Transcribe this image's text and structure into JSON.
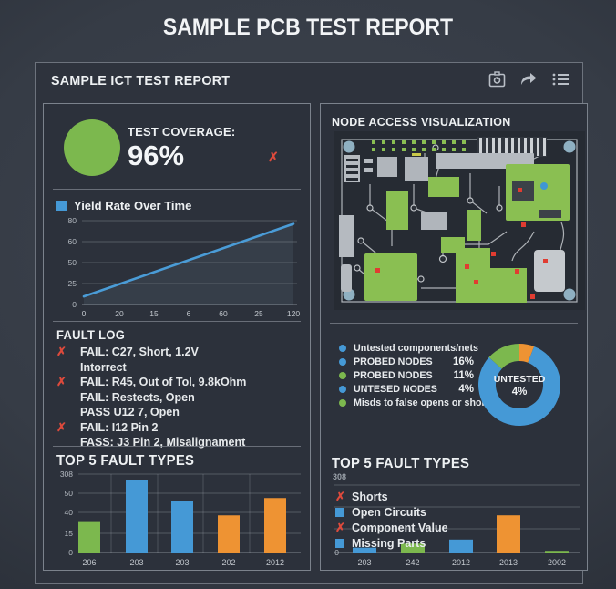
{
  "page_title": "SAMPLE PCB TEST REPORT",
  "panel": {
    "title": "SAMPLE ICT TEST REPORT",
    "icons": [
      "camera-icon",
      "share-icon",
      "list-icon"
    ]
  },
  "colors": {
    "green": "#7cb84e",
    "blue": "#4599d6",
    "orange": "#ee9333",
    "red": "#dd4a3c",
    "text": "#eef1f3",
    "muted": "#aeb5bc",
    "panel_bg": "#2e333d",
    "card_bg": "#2c313b"
  },
  "coverage": {
    "label": "TEST COVERAGE:",
    "value": "96%"
  },
  "fault_log": {
    "title": "FAULT LOG",
    "entries": [
      {
        "fail_mark": true,
        "text": "FAIL: C27, Short, 1.2V"
      },
      {
        "fail_mark": false,
        "text": "Intorrect"
      },
      {
        "fail_mark": true,
        "text": "FAIL: R45, Out of Tol, 9.8kOhm"
      },
      {
        "fail_mark": false,
        "text": "FAIL: Restects, Open"
      },
      {
        "fail_mark": false,
        "text": "PASS U12 7, Open"
      },
      {
        "fail_mark": true,
        "text": "FAIL: I12 Pin 2"
      },
      {
        "fail_mark": false,
        "text": "FASS: J3 Pin 2, Misalignament"
      }
    ]
  },
  "node_access": {
    "title": "NODE ACCESS VISUALIZATION"
  },
  "untested_legend": [
    {
      "dot": "#4599d6",
      "label": "Untested components/nets",
      "value": ""
    },
    {
      "dot": "#4599d6",
      "label": "PROBED NODES",
      "value": "16%"
    },
    {
      "dot": "#7cb84e",
      "label": "PROBED NODES",
      "value": "11%"
    },
    {
      "dot": "#4599d6",
      "label": "UNTESED NODES",
      "value": "4%"
    },
    {
      "dot": "#7cb84e",
      "label": "Misds to false opens or shorts",
      "value": ""
    }
  ],
  "fault_types_legend": [
    {
      "marker": "x",
      "color": "#dd4a3c",
      "label": "Shorts"
    },
    {
      "marker": "square",
      "color": "#4599d6",
      "label": "Open Circuits"
    },
    {
      "marker": "x",
      "color": "#dd4a3c",
      "label": "Component Value"
    },
    {
      "marker": "square",
      "color": "#4599d6",
      "label": "Missing Parts"
    }
  ],
  "chart_data": [
    {
      "id": "yield_line",
      "type": "line",
      "title": "Yield Rate Over Time",
      "legend_color": "#4599d6",
      "y_ticks": [
        "80",
        "60",
        "50",
        "25",
        "0"
      ],
      "x_ticks": [
        "0",
        "20",
        "15",
        "6",
        "60",
        "25",
        "120"
      ],
      "x": [
        0,
        130
      ],
      "series": [
        {
          "name": "Yield Rate",
          "values": [
            [
              0,
              8
            ],
            [
              130,
              80
            ]
          ]
        }
      ],
      "ylim": [
        0,
        85
      ],
      "line_color": "#4a9cd7",
      "grid": true,
      "legend_position": "top-left"
    },
    {
      "id": "fault_types_left",
      "type": "bar",
      "title": "TOP 5 FAULT TYPES",
      "y_ticks": [
        "308",
        "50",
        "40",
        "15",
        "0"
      ],
      "categories": [
        "206",
        "203",
        "203",
        "202",
        "2012"
      ],
      "values": [
        38,
        88,
        62,
        45,
        66
      ],
      "bar_colors": [
        "#7cb84e",
        "#4599d6",
        "#4599d6",
        "#ee9333",
        "#ee9333"
      ],
      "ylim": [
        0,
        95
      ],
      "grid": true
    },
    {
      "id": "untested_donut",
      "type": "pie",
      "center_label": "UNTESTED",
      "center_value": "4%",
      "slices": [
        {
          "name": "orange",
          "color": "#ee9333",
          "degrees": 21
        },
        {
          "name": "blue",
          "color": "#4599d6",
          "degrees": 291
        },
        {
          "name": "green",
          "color": "#7cb84e",
          "degrees": 48
        }
      ]
    },
    {
      "id": "fault_types_right",
      "type": "bar",
      "title": "TOP 5 FAULT TYPES",
      "ymax_label": "308",
      "zero_label": "0",
      "categories": [
        "203",
        "242",
        "2012",
        "2013",
        "2002"
      ],
      "values": [
        6,
        11,
        16,
        46,
        2
      ],
      "bar_colors": [
        "#4599d6",
        "#7cb84e",
        "#4599d6",
        "#ee9333",
        "#7cb84e"
      ],
      "ylim": [
        0,
        90
      ],
      "grid": true
    }
  ]
}
